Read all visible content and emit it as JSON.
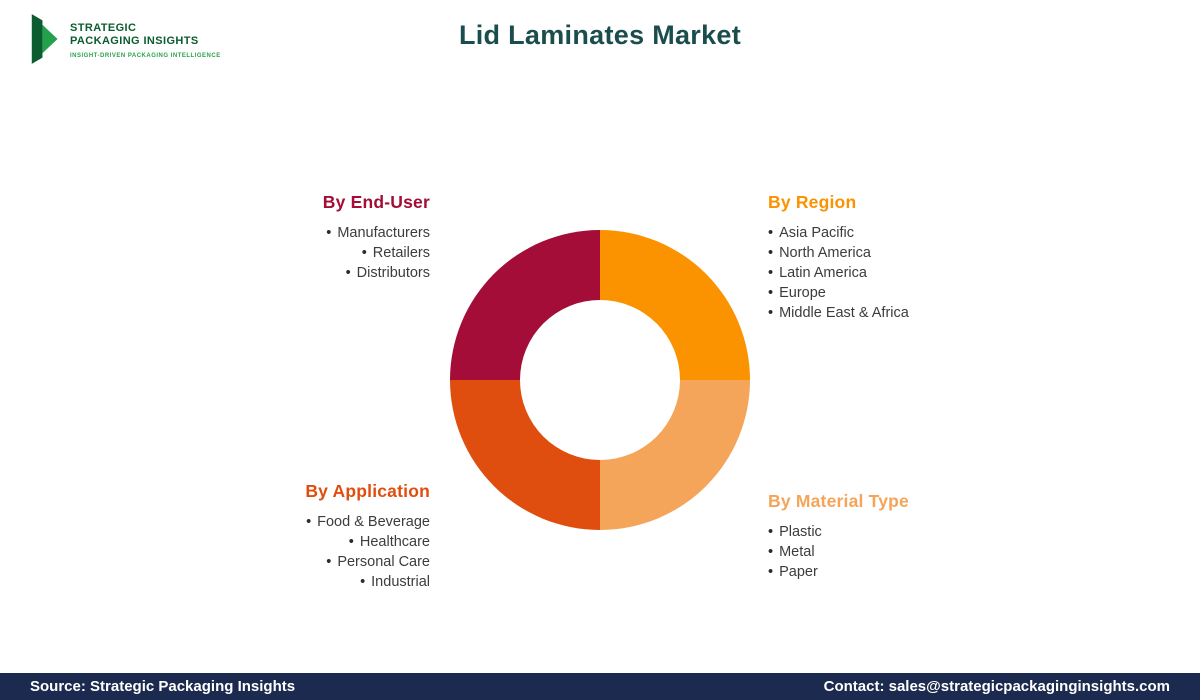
{
  "header": {
    "title": "Lid Laminates Market",
    "title_color": "#1b4d4d",
    "logo": {
      "line1": "STRATEGIC",
      "line2": "PACKAGING INSIGHTS",
      "tagline": "INSIGHT-DRIVEN PACKAGING INTELLIGENCE",
      "dark_green": "#0b5c2e",
      "light_green": "#23a14d",
      "text_color": "#0b5c2e",
      "tagline_color": "#2aa04e"
    }
  },
  "chart_data": {
    "type": "pie",
    "title": "Lid Laminates Market segmentation donut",
    "categories": [
      "By Region",
      "By Material Type",
      "By Application",
      "By End-User"
    ],
    "values": [
      25,
      25,
      25,
      25
    ],
    "colors": [
      "#FB9200",
      "#F4A55A",
      "#E04E0F",
      "#A30D37"
    ],
    "donut_hole_ratio": 0.53,
    "start_angle_deg": 0,
    "legend_position": "around-chart"
  },
  "segments": [
    {
      "title": "By End-User",
      "color": "#A30D37",
      "items": [
        "Manufacturers",
        "Retailers",
        "Distributors"
      ]
    },
    {
      "title": "By Region",
      "color": "#FB9200",
      "items": [
        "Asia Pacific",
        "North America",
        "Latin America",
        "Europe",
        "Middle East & Africa"
      ]
    },
    {
      "title": "By Application",
      "color": "#E04E0F",
      "items": [
        "Food & Beverage",
        "Healthcare",
        "Personal Care",
        "Industrial"
      ]
    },
    {
      "title": "By Material Type",
      "color": "#F4A55A",
      "items": [
        "Plastic",
        "Metal",
        "Paper"
      ]
    }
  ],
  "footer": {
    "source": "Source: Strategic Packaging Insights",
    "contact": "Contact: sales@strategicpackaginginsights.com",
    "bg_color": "#1b2a4e"
  }
}
